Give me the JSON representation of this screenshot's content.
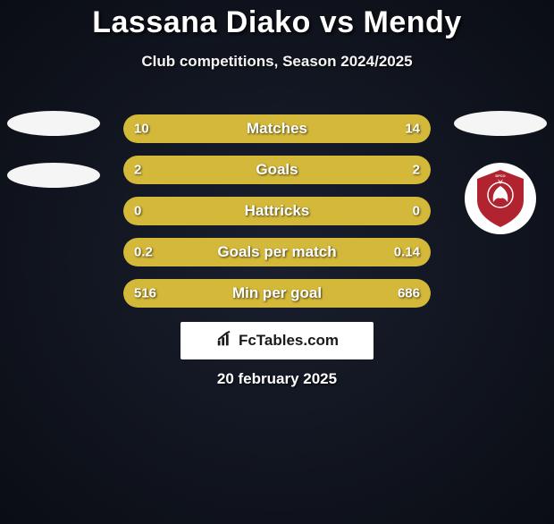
{
  "title": "Lassana Diako vs Mendy",
  "subtitle": "Club competitions, Season 2024/2025",
  "date": "20 february 2025",
  "brand": "FcTables.com",
  "colors": {
    "left_fill": "#d4b83a",
    "right_fill": "#d4b83a",
    "bar_track": "#4a4a1a",
    "oval_left": "#f5f5f5",
    "oval_right": "#f5f5f5",
    "text": "#ffffff",
    "crest_bg": "#b0232f"
  },
  "badges": {
    "left": {
      "ovals": 2,
      "has_club_crest": false
    },
    "right": {
      "ovals": 1,
      "has_club_crest": true
    }
  },
  "bars": [
    {
      "label": "Matches",
      "left": "10",
      "right": "14",
      "left_pct": 42,
      "right_pct": 58
    },
    {
      "label": "Goals",
      "left": "2",
      "right": "2",
      "left_pct": 50,
      "right_pct": 50
    },
    {
      "label": "Hattricks",
      "left": "0",
      "right": "0",
      "left_pct": 50,
      "right_pct": 50
    },
    {
      "label": "Goals per match",
      "left": "0.2",
      "right": "0.14",
      "left_pct": 59,
      "right_pct": 41
    },
    {
      "label": "Min per goal",
      "left": "516",
      "right": "686",
      "left_pct": 43,
      "right_pct": 57
    }
  ]
}
